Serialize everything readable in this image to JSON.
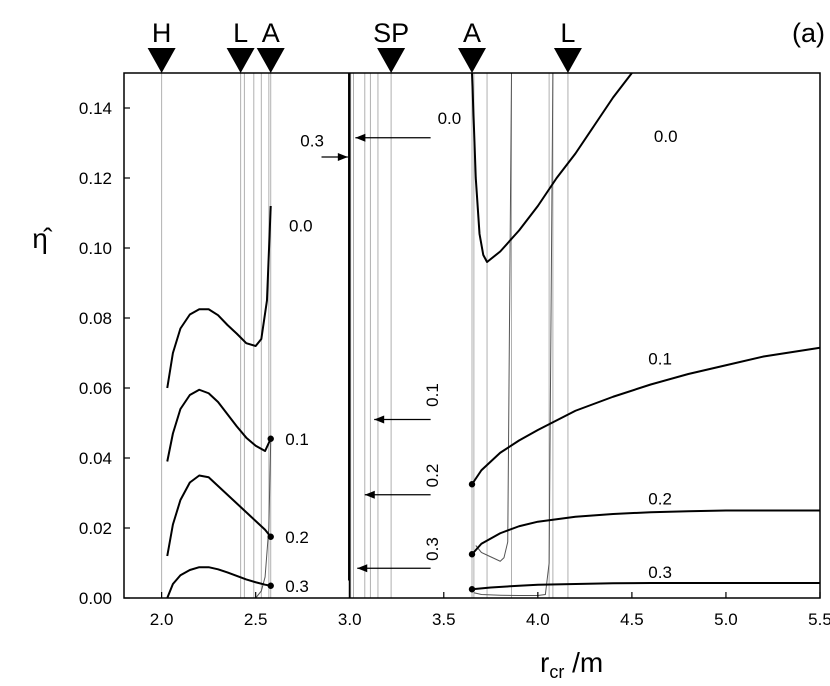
{
  "chart_data": {
    "type": "line",
    "panel_label": "(a)",
    "xlabel_main": "r",
    "xlabel_sub": "cr",
    "xlabel_suffix": " /m",
    "ylabel": "η̂",
    "xlim": [
      1.8,
      5.5
    ],
    "ylim": [
      0.0,
      0.15
    ],
    "xticks": [
      "2.0",
      "2.5",
      "3.0",
      "3.5",
      "4.0",
      "4.5",
      "5.0",
      "5.5"
    ],
    "xtick_values": [
      2.0,
      2.5,
      3.0,
      3.5,
      4.0,
      4.5,
      5.0,
      5.5
    ],
    "yticks": [
      "0.00",
      "0.02",
      "0.04",
      "0.06",
      "0.08",
      "0.10",
      "0.12",
      "0.14"
    ],
    "ytick_values": [
      0.0,
      0.02,
      0.04,
      0.06,
      0.08,
      0.1,
      0.12,
      0.14
    ],
    "grid": false,
    "top_markers": [
      {
        "label": "H",
        "x": 2.0
      },
      {
        "label": "L",
        "x": 2.42
      },
      {
        "label": "A",
        "x": 2.58
      },
      {
        "label": "SP",
        "x": 3.22
      },
      {
        "label": "A",
        "x": 3.65
      },
      {
        "label": "L",
        "x": 4.16
      }
    ],
    "vertical_lines": [
      2.0,
      2.42,
      2.44,
      2.49,
      2.53,
      2.57,
      2.58,
      2.995,
      3.005,
      3.02,
      3.08,
      3.11,
      3.15,
      3.22,
      3.65,
      3.66,
      3.73,
      3.86,
      4.06,
      4.08,
      4.16
    ],
    "series": [
      {
        "name": "0.0",
        "segments": [
          {
            "x": [
              2.03,
              2.06,
              2.1,
              2.15,
              2.2,
              2.25,
              2.3,
              2.35,
              2.4,
              2.45,
              2.5,
              2.53,
              2.56,
              2.58
            ],
            "y": [
              0.06,
              0.07,
              0.077,
              0.081,
              0.0825,
              0.0825,
              0.0808,
              0.078,
              0.0755,
              0.0728,
              0.072,
              0.074,
              0.085,
              0.112
            ]
          },
          {
            "x": [
              3.65,
              3.67,
              3.69,
              3.71,
              3.73,
              3.8,
              3.9,
              4.0,
              4.1,
              4.2,
              4.3,
              4.4,
              4.5
            ],
            "y": [
              0.15,
              0.12,
              0.104,
              0.098,
              0.096,
              0.099,
              0.105,
              0.112,
              0.12,
              0.127,
              0.135,
              0.143,
              0.15
            ]
          }
        ]
      },
      {
        "name": "0.1",
        "segments": [
          {
            "x": [
              2.03,
              2.06,
              2.1,
              2.15,
              2.2,
              2.25,
              2.3,
              2.35,
              2.4,
              2.45,
              2.5,
              2.55,
              2.58
            ],
            "y": [
              0.039,
              0.047,
              0.054,
              0.058,
              0.0595,
              0.0585,
              0.056,
              0.0525,
              0.049,
              0.0458,
              0.0435,
              0.042,
              0.0455
            ]
          },
          {
            "x": [
              3.65,
              3.7,
              3.8,
              3.9,
              4.0,
              4.2,
              4.4,
              4.6,
              4.8,
              5.0,
              5.2,
              5.5
            ],
            "y": [
              0.0325,
              0.0365,
              0.0415,
              0.045,
              0.048,
              0.0535,
              0.0575,
              0.061,
              0.064,
              0.0665,
              0.069,
              0.0715
            ]
          }
        ]
      },
      {
        "name": "0.2",
        "segments": [
          {
            "x": [
              2.03,
              2.06,
              2.1,
              2.15,
              2.2,
              2.25,
              2.3,
              2.35,
              2.4,
              2.45,
              2.5,
              2.55,
              2.58
            ],
            "y": [
              0.012,
              0.021,
              0.028,
              0.033,
              0.035,
              0.0345,
              0.032,
              0.0295,
              0.027,
              0.0245,
              0.022,
              0.0195,
              0.0175
            ]
          },
          {
            "x": [
              3.65,
              3.7,
              3.8,
              3.9,
              4.0,
              4.2,
              4.4,
              4.6,
              4.8,
              5.0,
              5.2,
              5.5
            ],
            "y": [
              0.0125,
              0.0155,
              0.0185,
              0.0205,
              0.0218,
              0.0232,
              0.024,
              0.0245,
              0.0248,
              0.025,
              0.025,
              0.025
            ]
          }
        ]
      },
      {
        "name": "0.3",
        "segments": [
          {
            "x": [
              2.03,
              2.06,
              2.1,
              2.15,
              2.2,
              2.25,
              2.3,
              2.35,
              2.4,
              2.45,
              2.5,
              2.55,
              2.58
            ],
            "y": [
              0.0,
              0.004,
              0.0065,
              0.008,
              0.0088,
              0.0088,
              0.0082,
              0.0073,
              0.0063,
              0.0053,
              0.0045,
              0.0038,
              0.0035
            ]
          },
          {
            "x": [
              3.65,
              3.75,
              3.9,
              4.0,
              4.2,
              4.4,
              4.6,
              5.0,
              5.5
            ],
            "y": [
              0.0025,
              0.003,
              0.0035,
              0.0038,
              0.004,
              0.0042,
              0.0043,
              0.0043,
              0.0043
            ]
          }
        ]
      }
    ],
    "thin_curves": [
      {
        "x": [
          2.5,
          2.53,
          2.55,
          2.57,
          2.58
        ],
        "y": [
          0.0,
          0.002,
          0.006,
          0.02,
          0.045
        ]
      },
      {
        "x": [
          3.67,
          3.7,
          3.74,
          3.78,
          3.8,
          3.82,
          3.84,
          3.86
        ],
        "y": [
          0.015,
          0.013,
          0.012,
          0.011,
          0.0105,
          0.0115,
          0.016,
          0.15
        ]
      },
      {
        "x": [
          3.66,
          3.7,
          3.8,
          3.9,
          4.0,
          4.04,
          4.06,
          4.08
        ],
        "y": [
          0.0015,
          0.001,
          0.0008,
          0.0007,
          0.0007,
          0.001,
          0.01,
          0.15
        ]
      }
    ],
    "end_points": [
      {
        "x": 2.58,
        "y": 0.0455
      },
      {
        "x": 2.58,
        "y": 0.0175
      },
      {
        "x": 2.58,
        "y": 0.0035
      },
      {
        "x": 3.65,
        "y": 0.0325
      },
      {
        "x": 3.65,
        "y": 0.0125
      },
      {
        "x": 3.65,
        "y": 0.0025
      }
    ],
    "curve_labels": [
      {
        "text": "0.0",
        "x": 2.74,
        "y": 0.1065
      },
      {
        "text": "0.1",
        "x": 2.72,
        "y": 0.0455
      },
      {
        "text": "0.2",
        "x": 2.72,
        "y": 0.0175
      },
      {
        "text": "0.3",
        "x": 2.72,
        "y": 0.0035
      },
      {
        "text": "0.0",
        "x": 4.68,
        "y": 0.132
      },
      {
        "text": "0.1",
        "x": 4.65,
        "y": 0.0685
      },
      {
        "text": "0.2",
        "x": 4.65,
        "y": 0.0285
      },
      {
        "text": "0.3",
        "x": 4.65,
        "y": 0.0075
      }
    ],
    "arrows": [
      {
        "text": "0.0",
        "text_x": 3.53,
        "text_y": 0.1355,
        "orient": "h",
        "from": [
          3.43,
          0.1315
        ],
        "to": [
          3.03,
          0.1315
        ]
      },
      {
        "text": "0.3",
        "text_x": 2.8,
        "text_y": 0.129,
        "orient": "h",
        "from": [
          2.85,
          0.126
        ],
        "to": [
          2.99,
          0.126
        ]
      },
      {
        "text": "0.1",
        "text_x": 3.47,
        "text_y": 0.058,
        "orient": "v",
        "from": [
          3.43,
          0.051
        ],
        "to": [
          3.13,
          0.051
        ]
      },
      {
        "text": "0.2",
        "text_x": 3.47,
        "text_y": 0.035,
        "orient": "v",
        "from": [
          3.43,
          0.0295
        ],
        "to": [
          3.08,
          0.0295
        ]
      },
      {
        "text": "0.3",
        "text_x": 3.47,
        "text_y": 0.014,
        "orient": "v",
        "from": [
          3.43,
          0.0085
        ],
        "to": [
          3.04,
          0.0085
        ]
      }
    ],
    "spike_lines": [
      {
        "x": 2.995,
        "y_from": 0.005,
        "y_to": 0.15
      },
      {
        "x": 3.0,
        "y_from": 0.0,
        "y_to": 0.15
      }
    ]
  }
}
